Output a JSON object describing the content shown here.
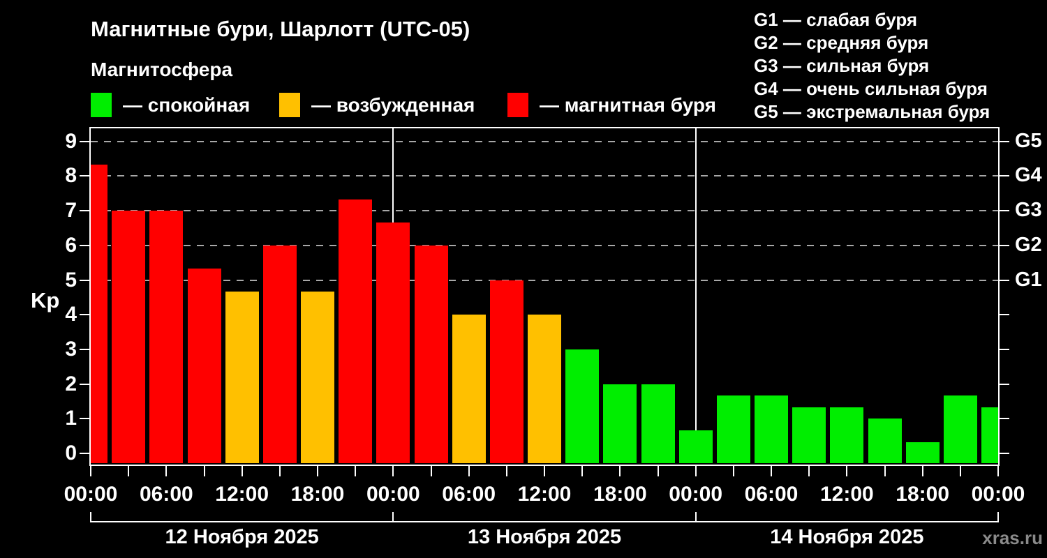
{
  "header": {
    "title": "Магнитные бури, Шарлотт (UTC-05)",
    "subtitle": "Магнитосфера",
    "legend": [
      {
        "key": "quiet",
        "label": "— спокойная",
        "color": "#00ee00"
      },
      {
        "key": "excited",
        "label": "— возбужденная",
        "color": "#ffc000"
      },
      {
        "key": "storm",
        "label": "— магнитная буря",
        "color": "#ff0000"
      }
    ],
    "g_legend": [
      "G1 — слабая буря",
      "G2 — средняя буря",
      "G3 — сильная буря",
      "G4 — очень сильная буря",
      "G5 — экстремальная буря"
    ]
  },
  "chart_data": {
    "type": "bar",
    "title": "Магнитные бури, Шарлотт (UTC-05)",
    "ylabel": "Kp",
    "ylim": [
      0,
      9
    ],
    "yticks": [
      0,
      1,
      2,
      3,
      4,
      5,
      6,
      7,
      8,
      9
    ],
    "gridlines_at": [
      5,
      6,
      7,
      8,
      9
    ],
    "right_axis_labels": [
      {
        "kp": 5,
        "label": "G1"
      },
      {
        "kp": 6,
        "label": "G2"
      },
      {
        "kp": 7,
        "label": "G3"
      },
      {
        "kp": 8,
        "label": "G4"
      },
      {
        "kp": 9,
        "label": "G5"
      }
    ],
    "x_total_hours": 72,
    "x_tick_every_hours": 3,
    "time_labels": [
      "00:00",
      "06:00",
      "12:00",
      "18:00",
      "00:00",
      "06:00",
      "12:00",
      "18:00",
      "00:00",
      "06:00",
      "12:00",
      "18:00",
      "00:00"
    ],
    "days": [
      {
        "label": "12 Ноября 2025"
      },
      {
        "label": "13 Ноября 2025"
      },
      {
        "label": "14 Ноября 2025"
      }
    ],
    "bars": [
      {
        "hour": 0,
        "kp": 8.33,
        "state": "storm"
      },
      {
        "hour": 3,
        "kp": 7.0,
        "state": "storm"
      },
      {
        "hour": 6,
        "kp": 7.0,
        "state": "storm"
      },
      {
        "hour": 9,
        "kp": 5.33,
        "state": "storm"
      },
      {
        "hour": 12,
        "kp": 4.67,
        "state": "excited"
      },
      {
        "hour": 15,
        "kp": 6.0,
        "state": "storm"
      },
      {
        "hour": 18,
        "kp": 4.67,
        "state": "excited"
      },
      {
        "hour": 21,
        "kp": 7.33,
        "state": "storm"
      },
      {
        "hour": 24,
        "kp": 6.67,
        "state": "storm"
      },
      {
        "hour": 27,
        "kp": 6.0,
        "state": "storm"
      },
      {
        "hour": 30,
        "kp": 4.0,
        "state": "excited"
      },
      {
        "hour": 33,
        "kp": 5.0,
        "state": "storm"
      },
      {
        "hour": 36,
        "kp": 4.0,
        "state": "excited"
      },
      {
        "hour": 39,
        "kp": 3.0,
        "state": "quiet"
      },
      {
        "hour": 42,
        "kp": 2.0,
        "state": "quiet"
      },
      {
        "hour": 45,
        "kp": 2.0,
        "state": "quiet"
      },
      {
        "hour": 48,
        "kp": 0.67,
        "state": "quiet"
      },
      {
        "hour": 51,
        "kp": 1.67,
        "state": "quiet"
      },
      {
        "hour": 54,
        "kp": 1.67,
        "state": "quiet"
      },
      {
        "hour": 57,
        "kp": 1.33,
        "state": "quiet"
      },
      {
        "hour": 60,
        "kp": 1.33,
        "state": "quiet"
      },
      {
        "hour": 63,
        "kp": 1.0,
        "state": "quiet"
      },
      {
        "hour": 66,
        "kp": 0.33,
        "state": "quiet"
      },
      {
        "hour": 69,
        "kp": 1.67,
        "state": "quiet"
      },
      {
        "hour": 72,
        "kp": 1.33,
        "state": "quiet"
      }
    ],
    "colors": {
      "quiet": "#00ee00",
      "excited": "#ffc000",
      "storm": "#ff0000",
      "grid": "#a8a8a8",
      "day_line": "#ffffff",
      "axis": "#ffffff"
    },
    "legend_position": "top-left",
    "grid": true
  },
  "watermark": "xras.ru"
}
